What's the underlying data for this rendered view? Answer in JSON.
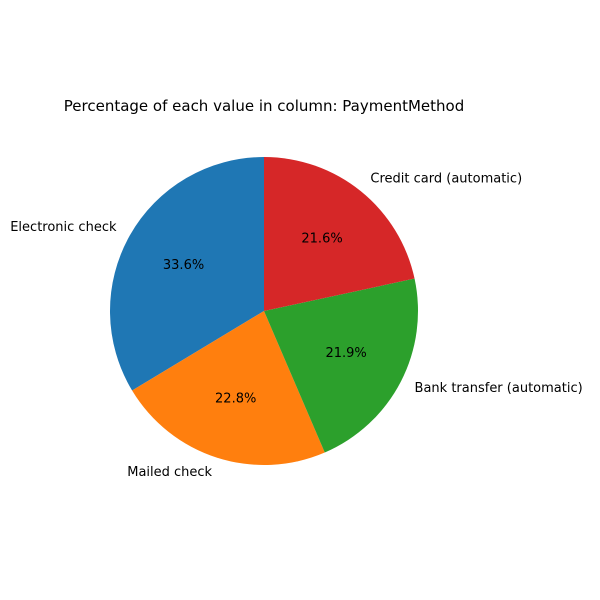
{
  "chart_data": {
    "type": "pie",
    "title": "Percentage of each value in column: PaymentMethod",
    "slices": [
      {
        "label": "Electronic check",
        "value": 33.6,
        "display": "33.6%",
        "color": "#1f77b4"
      },
      {
        "label": "Mailed check",
        "value": 22.8,
        "display": "22.8%",
        "color": "#ff7f0e"
      },
      {
        "label": "Bank transfer (automatic)",
        "value": 21.9,
        "display": "21.9%",
        "color": "#2ca02c"
      },
      {
        "label": "Credit card (automatic)",
        "value": 21.6,
        "display": "21.6%",
        "color": "#d62728"
      }
    ],
    "start_angle_deg": 90,
    "direction": "counterclockwise",
    "legend": "none"
  }
}
